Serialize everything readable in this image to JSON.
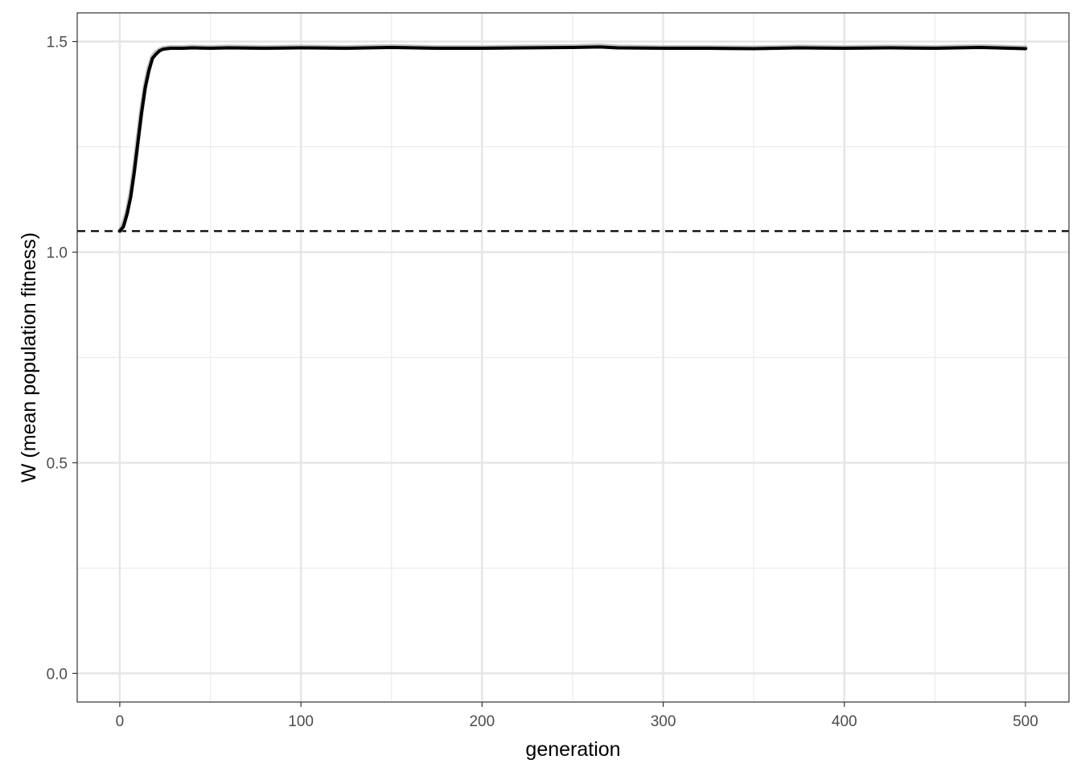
{
  "chart_data": {
    "type": "line",
    "title": "",
    "xlabel": "generation",
    "ylabel": "W (mean population fitness)",
    "xlim": [
      -23.5,
      524
    ],
    "ylim": [
      -0.068,
      1.568
    ],
    "x_ticks": [
      0,
      100,
      200,
      300,
      400,
      500
    ],
    "x_tick_labels": [
      "0",
      "100",
      "200",
      "300",
      "400",
      "500"
    ],
    "y_ticks": [
      0.0,
      0.5,
      1.0,
      1.5
    ],
    "y_tick_labels": [
      "0.0",
      "0.5",
      "1.0",
      "1.5"
    ],
    "x_minor_ticks": [
      50,
      150,
      250,
      350,
      450
    ],
    "y_minor_ticks": [
      0.25,
      0.75,
      1.25
    ],
    "grid": true,
    "reference_line": {
      "y": 1.05,
      "style": "dashed",
      "color": "#000000"
    },
    "series": [
      {
        "role": "mean",
        "color": "#000000",
        "x": [
          0,
          2,
          4,
          6,
          8,
          10,
          12,
          14,
          16,
          18,
          20,
          22,
          24,
          26,
          28,
          30,
          35,
          40,
          50,
          60,
          80,
          100,
          125,
          150,
          175,
          200,
          225,
          250,
          265,
          275,
          300,
          325,
          350,
          375,
          400,
          425,
          450,
          475,
          500
        ],
        "y": [
          1.05,
          1.06,
          1.09,
          1.13,
          1.19,
          1.26,
          1.33,
          1.39,
          1.43,
          1.46,
          1.47,
          1.478,
          1.482,
          1.483,
          1.484,
          1.484,
          1.484,
          1.485,
          1.484,
          1.485,
          1.484,
          1.485,
          1.484,
          1.486,
          1.484,
          1.484,
          1.485,
          1.486,
          1.487,
          1.485,
          1.484,
          1.484,
          1.483,
          1.485,
          1.484,
          1.485,
          1.484,
          1.486,
          1.483
        ]
      },
      {
        "role": "replicates",
        "color": "#b3b3b3",
        "x": [
          0,
          2,
          4,
          6,
          8,
          10,
          12,
          14,
          16,
          18,
          20,
          22,
          24,
          26,
          28,
          30,
          35,
          40,
          50,
          60,
          80,
          100,
          125,
          150,
          175,
          200,
          225,
          250,
          265,
          275,
          300,
          325,
          350,
          375,
          400,
          425,
          450,
          475,
          500
        ],
        "y": [
          1.05,
          1.065,
          1.095,
          1.138,
          1.197,
          1.267,
          1.336,
          1.395,
          1.436,
          1.463,
          1.474,
          1.48,
          1.484,
          1.485,
          1.486,
          1.486,
          1.486,
          1.487,
          1.486,
          1.487,
          1.486,
          1.487,
          1.486,
          1.488,
          1.486,
          1.486,
          1.487,
          1.488,
          1.49,
          1.487,
          1.486,
          1.486,
          1.485,
          1.487,
          1.486,
          1.487,
          1.486,
          1.488,
          1.485
        ]
      }
    ]
  }
}
